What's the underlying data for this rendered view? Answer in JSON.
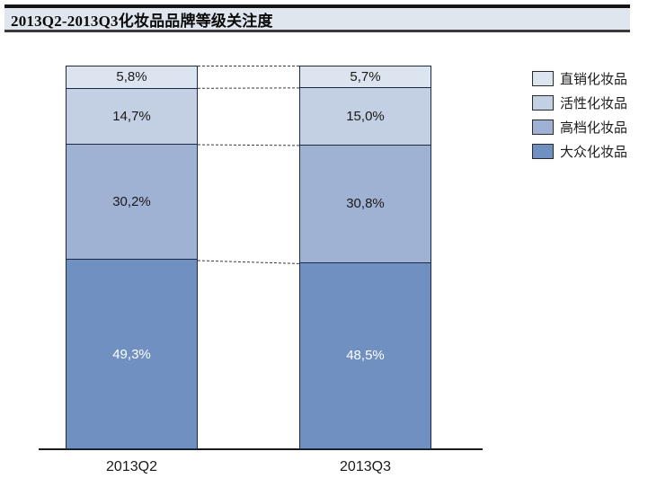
{
  "page": {
    "title": "2013Q2-2013Q3化妆品品牌等级关注度"
  },
  "colors": {
    "header_bg": "#e0e6ee",
    "header_border_top": "#141414",
    "bar_border": "#1b2a44",
    "axis_line": "#1a1a1a",
    "connector_line": "#3a3a3a"
  },
  "chart_data": {
    "type": "bar",
    "subtype": "stacked-100-percent",
    "title": "2013Q2-2013Q3化妆品品牌等级关注度",
    "categories": [
      "2013Q2",
      "2013Q3"
    ],
    "series": [
      {
        "name": "直销化妆品",
        "values": [
          5.8,
          5.7
        ],
        "labels": [
          "5,8%",
          "5,7%"
        ],
        "color": "#dce4ef",
        "label_color": "#1a1a1a"
      },
      {
        "name": "活性化妆品",
        "values": [
          14.7,
          15.0
        ],
        "labels": [
          "14,7%",
          "15,0%"
        ],
        "color": "#c3cfe2",
        "label_color": "#1a1a1a"
      },
      {
        "name": "高档化妆品",
        "values": [
          30.2,
          30.8
        ],
        "labels": [
          "30,2%",
          "30,8%"
        ],
        "color": "#9fb2d3",
        "label_color": "#1a1a1a"
      },
      {
        "name": "大众化妆品",
        "values": [
          49.3,
          48.5
        ],
        "labels": [
          "49,3%",
          "48,5%"
        ],
        "color": "#6f90c0",
        "label_color": "#ffffff"
      }
    ],
    "ylim": [
      0,
      100
    ],
    "grid": false,
    "legend_position": "right",
    "connectors": "dashed lines join segment boundaries between the two stacks",
    "note": "series listed top-to-bottom as rendered; legend order matches"
  }
}
